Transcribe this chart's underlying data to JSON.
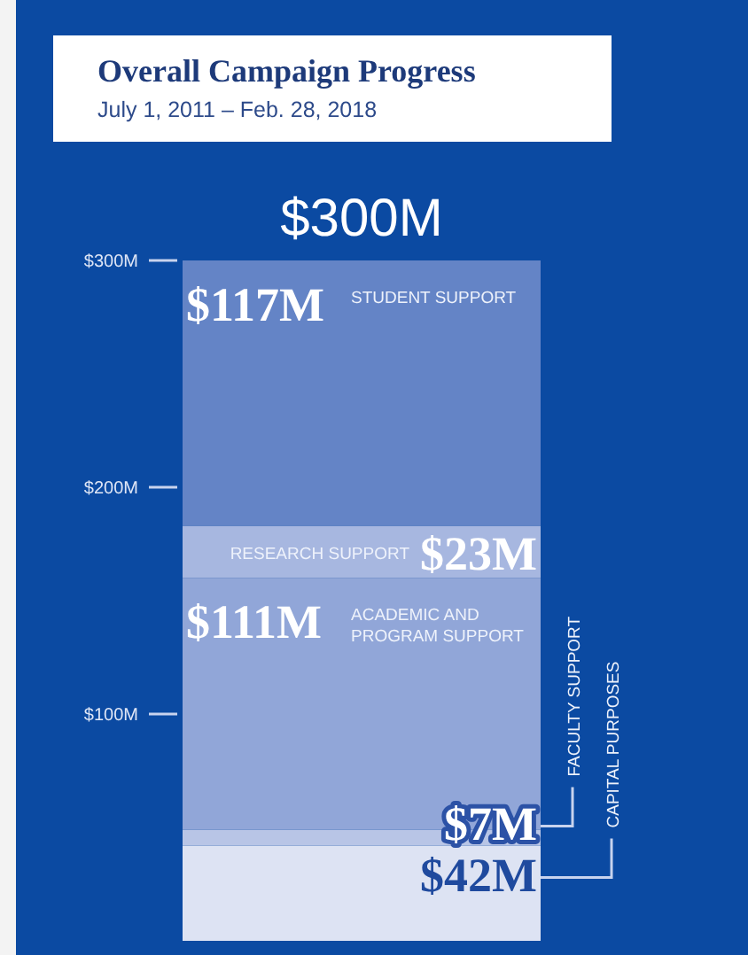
{
  "chart_data": {
    "type": "bar",
    "title": "Overall Campaign Progress",
    "subtitle": "July 1, 2011 – Feb. 28, 2018",
    "categories": [
      null
    ],
    "stacked": true,
    "ylim": [
      0,
      300
    ],
    "yticks": [
      {
        "value": 100,
        "label": "$100M"
      },
      {
        "value": 200,
        "label": "$200M"
      },
      {
        "value": 300,
        "label": "$300M"
      }
    ],
    "series": [
      {
        "name": "CAPITAL PURPOSES",
        "color": "#dde3f3",
        "values": [
          42
        ],
        "value_labels": [
          "$42M"
        ]
      },
      {
        "name": "FACULTY SUPPORT",
        "color": "#b8c5e6",
        "values": [
          7
        ],
        "value_labels": [
          "$7M"
        ]
      },
      {
        "name": "ACADEMIC AND PROGRAM SUPPORT",
        "color": "#91a6d8",
        "values": [
          111
        ],
        "value_labels": [
          "$111M"
        ]
      },
      {
        "name": "RESEARCH SUPPORT",
        "color": "#a7b7e0",
        "values": [
          23
        ],
        "value_labels": [
          "$23M"
        ]
      },
      {
        "name": "STUDENT SUPPORT",
        "color": "#6484c6",
        "values": [
          117
        ],
        "value_labels": [
          "$117M"
        ]
      }
    ],
    "totals": [
      "$300M"
    ],
    "grid": false,
    "legend": false
  }
}
